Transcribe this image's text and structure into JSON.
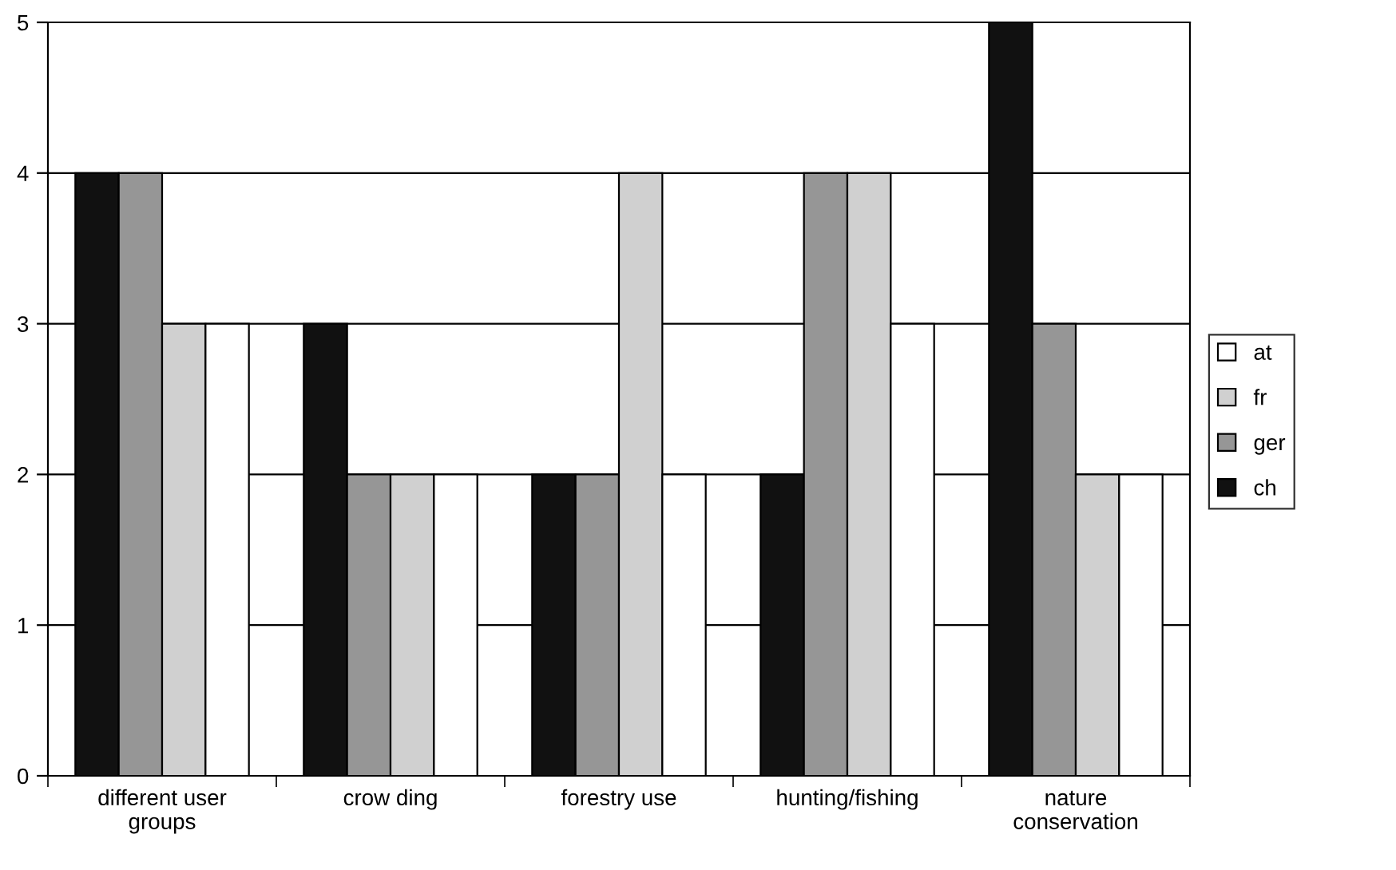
{
  "chart_data": {
    "type": "bar",
    "categories": [
      "different user\ngroups",
      "crow ding",
      "forestry use",
      "hunting/fishing",
      "nature\nconservation"
    ],
    "series": [
      {
        "name": "ch",
        "color": "#111111",
        "values": [
          4,
          3,
          2,
          2,
          5
        ]
      },
      {
        "name": "ger",
        "color": "#969696",
        "values": [
          4,
          2,
          2,
          4,
          3
        ]
      },
      {
        "name": "fr",
        "color": "#d0d0d0",
        "values": [
          3,
          2,
          4,
          4,
          2
        ]
      },
      {
        "name": "at",
        "color": "#ffffff",
        "values": [
          3,
          2,
          2,
          3,
          2
        ]
      }
    ],
    "ylim": [
      0,
      5
    ],
    "yticks": [
      0,
      1,
      2,
      3,
      4,
      5
    ],
    "grid": "y",
    "legend": "right"
  }
}
